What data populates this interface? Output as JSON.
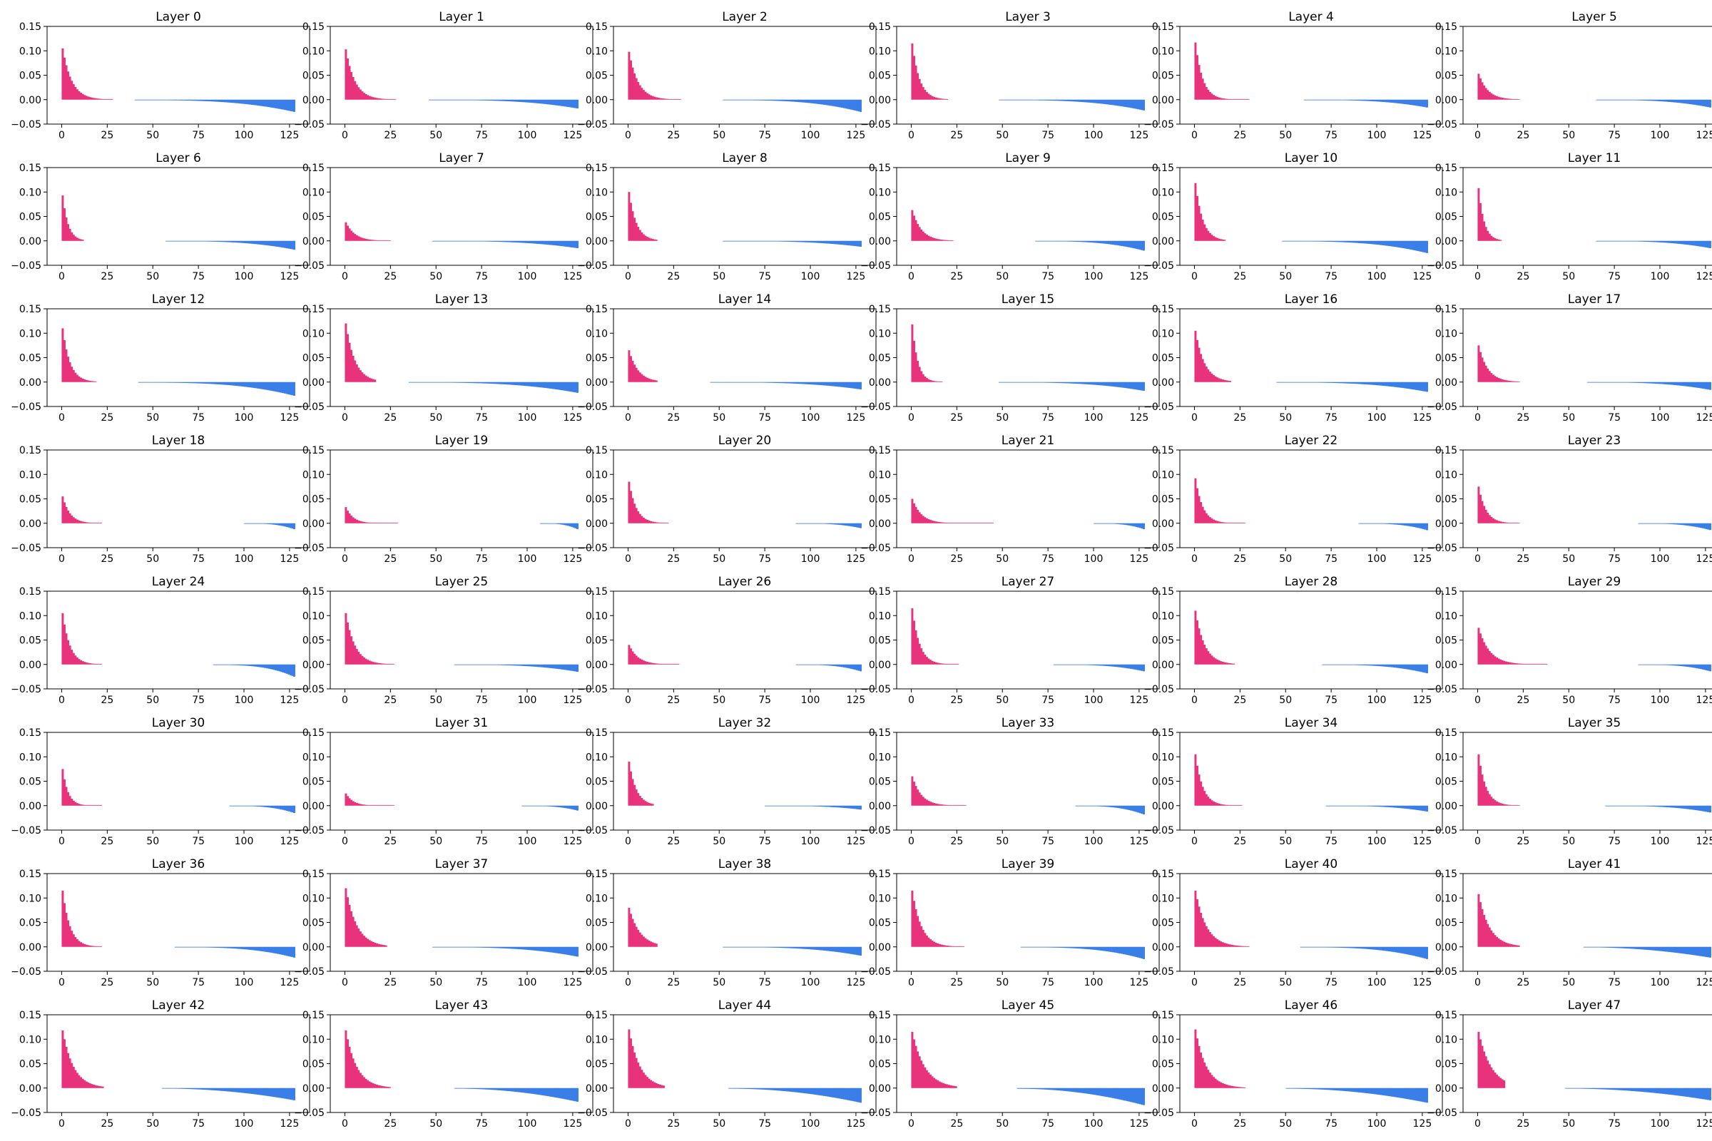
{
  "figure": {
    "background": "#ffffff"
  },
  "style": {
    "positive_color": "#e8327c",
    "negative_color": "#3a7fe8"
  },
  "chart_data": {
    "type": "bar",
    "grid": false,
    "layout": {
      "rows": 8,
      "cols": 6
    },
    "xlim": [
      -8,
      136
    ],
    "ylim": [
      -0.05,
      0.15
    ],
    "xticks": [
      0,
      25,
      50,
      75,
      100,
      125
    ],
    "yticks": [
      -0.05,
      0.0,
      0.05,
      0.1,
      0.15
    ],
    "ytick_labels": [
      "−0.05",
      "0.00",
      "0.05",
      "0.10",
      "0.15"
    ],
    "bins": 128,
    "panels": [
      {
        "title": "Layer 0",
        "pos": {
          "n": 28,
          "peak": 0.105,
          "decay": 5
        },
        "neg": {
          "start": 40,
          "peak": -0.025,
          "power": 3
        }
      },
      {
        "title": "Layer 1",
        "pos": {
          "n": 28,
          "peak": 0.103,
          "decay": 5
        },
        "neg": {
          "start": 46,
          "peak": -0.018,
          "power": 3
        }
      },
      {
        "title": "Layer 2",
        "pos": {
          "n": 29,
          "peak": 0.098,
          "decay": 5
        },
        "neg": {
          "start": 52,
          "peak": -0.025,
          "power": 3
        }
      },
      {
        "title": "Layer 3",
        "pos": {
          "n": 20,
          "peak": 0.115,
          "decay": 4
        },
        "neg": {
          "start": 48,
          "peak": -0.022,
          "power": 3
        }
      },
      {
        "title": "Layer 4",
        "pos": {
          "n": 30,
          "peak": 0.117,
          "decay": 4
        },
        "neg": {
          "start": 60,
          "peak": -0.016,
          "power": 3
        }
      },
      {
        "title": "Layer 5",
        "pos": {
          "n": 23,
          "peak": 0.053,
          "decay": 5
        },
        "neg": {
          "start": 65,
          "peak": -0.016,
          "power": 3
        }
      },
      {
        "title": "Layer 6",
        "pos": {
          "n": 12,
          "peak": 0.093,
          "decay": 3
        },
        "neg": {
          "start": 57,
          "peak": -0.018,
          "power": 3
        }
      },
      {
        "title": "Layer 7",
        "pos": {
          "n": 25,
          "peak": 0.038,
          "decay": 5
        },
        "neg": {
          "start": 48,
          "peak": -0.015,
          "power": 3
        }
      },
      {
        "title": "Layer 8",
        "pos": {
          "n": 16,
          "peak": 0.1,
          "decay": 4
        },
        "neg": {
          "start": 52,
          "peak": -0.012,
          "power": 3
        }
      },
      {
        "title": "Layer 9",
        "pos": {
          "n": 23,
          "peak": 0.063,
          "decay": 5
        },
        "neg": {
          "start": 68,
          "peak": -0.02,
          "power": 3
        }
      },
      {
        "title": "Layer 10",
        "pos": {
          "n": 17,
          "peak": 0.118,
          "decay": 4
        },
        "neg": {
          "start": 48,
          "peak": -0.025,
          "power": 3
        }
      },
      {
        "title": "Layer 11",
        "pos": {
          "n": 13,
          "peak": 0.108,
          "decay": 3
        },
        "neg": {
          "start": 65,
          "peak": -0.015,
          "power": 3
        }
      },
      {
        "title": "Layer 12",
        "pos": {
          "n": 19,
          "peak": 0.11,
          "decay": 4
        },
        "neg": {
          "start": 42,
          "peak": -0.028,
          "power": 3
        }
      },
      {
        "title": "Layer 13",
        "pos": {
          "n": 17,
          "peak": 0.12,
          "decay": 5
        },
        "neg": {
          "start": 35,
          "peak": -0.022,
          "power": 3
        }
      },
      {
        "title": "Layer 14",
        "pos": {
          "n": 16,
          "peak": 0.065,
          "decay": 5
        },
        "neg": {
          "start": 45,
          "peak": -0.015,
          "power": 3
        }
      },
      {
        "title": "Layer 15",
        "pos": {
          "n": 17,
          "peak": 0.118,
          "decay": 3
        },
        "neg": {
          "start": 48,
          "peak": -0.018,
          "power": 3
        }
      },
      {
        "title": "Layer 16",
        "pos": {
          "n": 20,
          "peak": 0.105,
          "decay": 5
        },
        "neg": {
          "start": 45,
          "peak": -0.02,
          "power": 3
        }
      },
      {
        "title": "Layer 17",
        "pos": {
          "n": 23,
          "peak": 0.075,
          "decay": 5
        },
        "neg": {
          "start": 60,
          "peak": -0.016,
          "power": 3
        }
      },
      {
        "title": "Layer 18",
        "pos": {
          "n": 22,
          "peak": 0.055,
          "decay": 4
        },
        "neg": {
          "start": 100,
          "peak": -0.012,
          "power": 3
        }
      },
      {
        "title": "Layer 19",
        "pos": {
          "n": 29,
          "peak": 0.033,
          "decay": 4
        },
        "neg": {
          "start": 107,
          "peak": -0.012,
          "power": 3
        }
      },
      {
        "title": "Layer 20",
        "pos": {
          "n": 22,
          "peak": 0.085,
          "decay": 4
        },
        "neg": {
          "start": 92,
          "peak": -0.01,
          "power": 3
        }
      },
      {
        "title": "Layer 21",
        "pos": {
          "n": 45,
          "peak": 0.05,
          "decay": 5
        },
        "neg": {
          "start": 100,
          "peak": -0.012,
          "power": 3
        }
      },
      {
        "title": "Layer 22",
        "pos": {
          "n": 28,
          "peak": 0.092,
          "decay": 4
        },
        "neg": {
          "start": 90,
          "peak": -0.014,
          "power": 3
        }
      },
      {
        "title": "Layer 23",
        "pos": {
          "n": 23,
          "peak": 0.075,
          "decay": 4
        },
        "neg": {
          "start": 88,
          "peak": -0.014,
          "power": 3
        }
      },
      {
        "title": "Layer 24",
        "pos": {
          "n": 22,
          "peak": 0.105,
          "decay": 4
        },
        "neg": {
          "start": 83,
          "peak": -0.025,
          "power": 3
        }
      },
      {
        "title": "Layer 25",
        "pos": {
          "n": 27,
          "peak": 0.105,
          "decay": 5
        },
        "neg": {
          "start": 60,
          "peak": -0.015,
          "power": 3
        }
      },
      {
        "title": "Layer 26",
        "pos": {
          "n": 28,
          "peak": 0.04,
          "decay": 5
        },
        "neg": {
          "start": 92,
          "peak": -0.014,
          "power": 3
        }
      },
      {
        "title": "Layer 27",
        "pos": {
          "n": 26,
          "peak": 0.115,
          "decay": 4
        },
        "neg": {
          "start": 78,
          "peak": -0.014,
          "power": 3
        }
      },
      {
        "title": "Layer 28",
        "pos": {
          "n": 22,
          "peak": 0.11,
          "decay": 5
        },
        "neg": {
          "start": 70,
          "peak": -0.018,
          "power": 3
        }
      },
      {
        "title": "Layer 29",
        "pos": {
          "n": 38,
          "peak": 0.075,
          "decay": 6
        },
        "neg": {
          "start": 88,
          "peak": -0.014,
          "power": 3
        }
      },
      {
        "title": "Layer 30",
        "pos": {
          "n": 22,
          "peak": 0.075,
          "decay": 3
        },
        "neg": {
          "start": 92,
          "peak": -0.015,
          "power": 3
        }
      },
      {
        "title": "Layer 31",
        "pos": {
          "n": 27,
          "peak": 0.025,
          "decay": 4
        },
        "neg": {
          "start": 97,
          "peak": -0.01,
          "power": 3
        }
      },
      {
        "title": "Layer 32",
        "pos": {
          "n": 14,
          "peak": 0.09,
          "decay": 4
        },
        "neg": {
          "start": 75,
          "peak": -0.008,
          "power": 3
        }
      },
      {
        "title": "Layer 33",
        "pos": {
          "n": 30,
          "peak": 0.06,
          "decay": 5
        },
        "neg": {
          "start": 90,
          "peak": -0.018,
          "power": 3
        }
      },
      {
        "title": "Layer 34",
        "pos": {
          "n": 26,
          "peak": 0.105,
          "decay": 4
        },
        "neg": {
          "start": 72,
          "peak": -0.012,
          "power": 3
        }
      },
      {
        "title": "Layer 35",
        "pos": {
          "n": 23,
          "peak": 0.105,
          "decay": 4
        },
        "neg": {
          "start": 70,
          "peak": -0.014,
          "power": 3
        }
      },
      {
        "title": "Layer 36",
        "pos": {
          "n": 22,
          "peak": 0.115,
          "decay": 4
        },
        "neg": {
          "start": 62,
          "peak": -0.022,
          "power": 3
        }
      },
      {
        "title": "Layer 37",
        "pos": {
          "n": 23,
          "peak": 0.12,
          "decay": 6
        },
        "neg": {
          "start": 48,
          "peak": -0.02,
          "power": 3
        }
      },
      {
        "title": "Layer 38",
        "pos": {
          "n": 16,
          "peak": 0.08,
          "decay": 6
        },
        "neg": {
          "start": 52,
          "peak": -0.018,
          "power": 3
        }
      },
      {
        "title": "Layer 39",
        "pos": {
          "n": 29,
          "peak": 0.115,
          "decay": 5
        },
        "neg": {
          "start": 60,
          "peak": -0.025,
          "power": 3
        }
      },
      {
        "title": "Layer 40",
        "pos": {
          "n": 30,
          "peak": 0.115,
          "decay": 6
        },
        "neg": {
          "start": 58,
          "peak": -0.025,
          "power": 3
        }
      },
      {
        "title": "Layer 41",
        "pos": {
          "n": 23,
          "peak": 0.108,
          "decay": 6
        },
        "neg": {
          "start": 58,
          "peak": -0.022,
          "power": 2
        }
      },
      {
        "title": "Layer 42",
        "pos": {
          "n": 23,
          "peak": 0.118,
          "decay": 6
        },
        "neg": {
          "start": 55,
          "peak": -0.025,
          "power": 2
        }
      },
      {
        "title": "Layer 43",
        "pos": {
          "n": 25,
          "peak": 0.118,
          "decay": 6
        },
        "neg": {
          "start": 60,
          "peak": -0.028,
          "power": 2
        }
      },
      {
        "title": "Layer 44",
        "pos": {
          "n": 20,
          "peak": 0.12,
          "decay": 6
        },
        "neg": {
          "start": 55,
          "peak": -0.03,
          "power": 2
        }
      },
      {
        "title": "Layer 45",
        "pos": {
          "n": 25,
          "peak": 0.115,
          "decay": 7
        },
        "neg": {
          "start": 58,
          "peak": -0.035,
          "power": 2
        }
      },
      {
        "title": "Layer 46",
        "pos": {
          "n": 28,
          "peak": 0.12,
          "decay": 6
        },
        "neg": {
          "start": 50,
          "peak": -0.03,
          "power": 2
        }
      },
      {
        "title": "Layer 47",
        "pos": {
          "n": 15,
          "peak": 0.115,
          "decay": 7
        },
        "neg": {
          "start": 48,
          "peak": -0.025,
          "power": 2
        }
      }
    ]
  }
}
